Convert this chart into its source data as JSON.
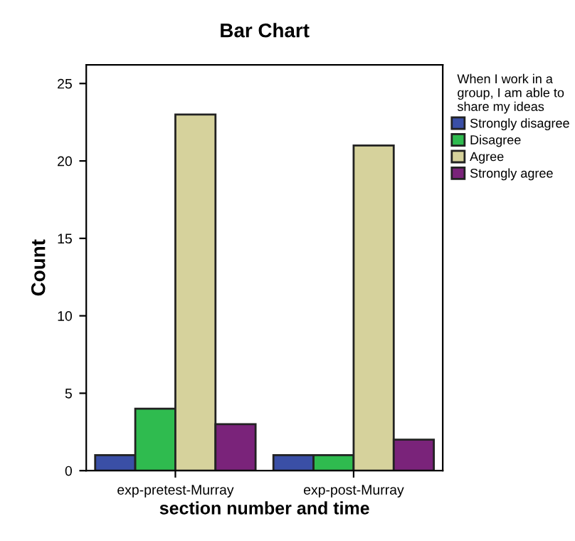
{
  "chart_data": {
    "type": "bar",
    "title": "Bar Chart",
    "xlabel": "section number and time",
    "ylabel": "Count",
    "legend_title": "When I work in a\ngroup, I am able to\nshare my ideas",
    "categories": [
      "exp-pretest-Murray",
      "exp-post-Murray"
    ],
    "series": [
      {
        "name": "Strongly disagree",
        "color": "#3a4fa6",
        "values": [
          1,
          1
        ]
      },
      {
        "name": "Disagree",
        "color": "#2fbb4f",
        "values": [
          4,
          1
        ]
      },
      {
        "name": "Agree",
        "color": "#d6d29c",
        "values": [
          23,
          21
        ]
      },
      {
        "name": "Strongly agree",
        "color": "#7a237a",
        "values": [
          3,
          2
        ]
      }
    ],
    "ylim": [
      0,
      26.2
    ],
    "yticks": [
      0,
      5,
      10,
      15,
      20,
      25
    ],
    "grid": false,
    "legend": "right"
  }
}
